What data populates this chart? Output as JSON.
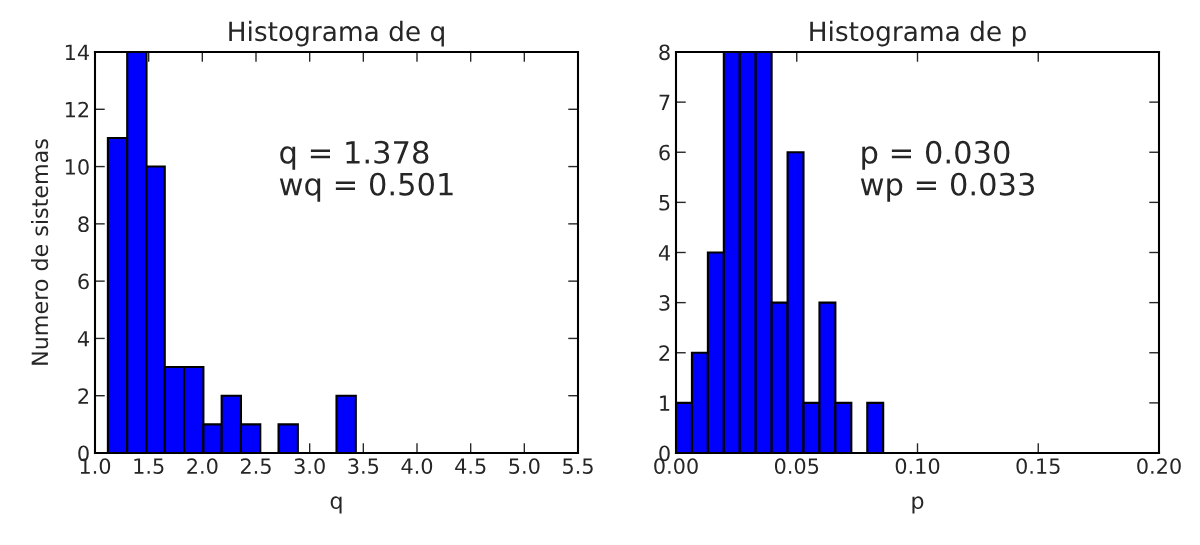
{
  "chart_data": [
    {
      "type": "histogram",
      "title": "Histograma de q",
      "xlabel": "q",
      "ylabel": "Numero de sistemas",
      "color": "#0000ff",
      "bins": [
        1.12,
        1.3,
        1.48,
        1.65,
        1.83,
        2.01,
        2.18,
        2.36,
        2.54,
        2.71,
        2.89,
        3.25,
        3.43
      ],
      "values": [
        11,
        14,
        10,
        3,
        3,
        1,
        2,
        1,
        0,
        1,
        0,
        2
      ],
      "xlim": [
        1.0,
        5.5
      ],
      "xticks": [
        {
          "value": 1.0,
          "label": "1.0"
        },
        1.5,
        {
          "value": 2.0,
          "label": "2.0"
        },
        2.5,
        {
          "value": 3.0,
          "label": "3.0"
        },
        3.5,
        {
          "value": 4.0,
          "label": "4.0"
        },
        4.5,
        {
          "value": 5.0,
          "label": "5.0"
        },
        5.5
      ],
      "ylim": [
        0,
        14
      ],
      "yticks": [
        0,
        2,
        4,
        6,
        8,
        10,
        12,
        14
      ],
      "grid": false,
      "annotations": [
        "q = 1.378\nwq = 0.501"
      ]
    },
    {
      "type": "histogram",
      "title": "Histograma de p",
      "xlabel": "p",
      "color": "#0000ff",
      "bins": [
        0,
        0.0066,
        0.0132,
        0.0198,
        0.0264,
        0.033,
        0.0396,
        0.0462,
        0.0528,
        0.0594,
        0.066,
        0.0726,
        0.0792,
        0.0858
      ],
      "values": [
        1,
        2,
        4,
        8,
        8,
        8,
        3,
        6,
        1,
        3,
        1,
        0,
        1
      ],
      "xlim": [
        0,
        0.2
      ],
      "xticks": [
        {
          "value": 0,
          "label": "0.00"
        },
        0.05,
        {
          "value": 0.1,
          "label": "0.10"
        },
        0.15,
        {
          "value": 0.2,
          "label": "0.20"
        }
      ],
      "ylim": [
        0,
        8
      ],
      "yticks": [
        0,
        1,
        2,
        3,
        4,
        5,
        6,
        7,
        8
      ],
      "grid": false,
      "annotations": [
        "p = 0.030\nwp = 0.033"
      ]
    }
  ]
}
